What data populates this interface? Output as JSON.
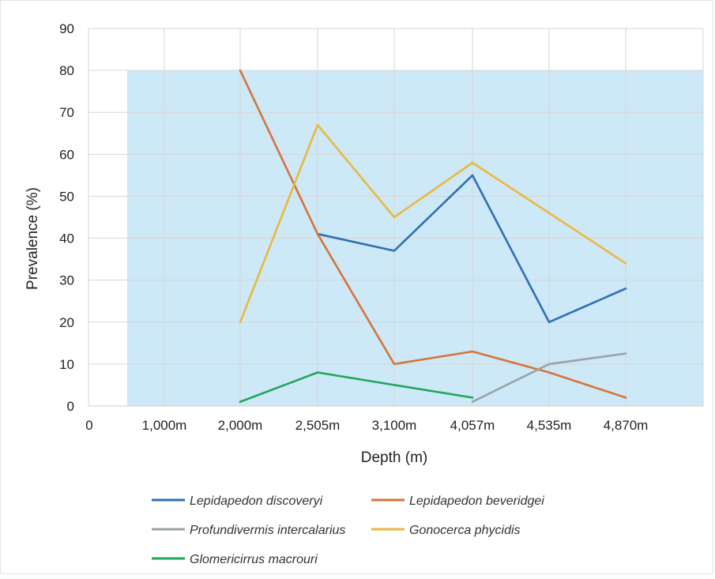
{
  "chart_data": {
    "type": "line",
    "title": "",
    "xlabel": "Depth (m)",
    "ylabel": "Prevalence (%)",
    "x_origin_label": "0",
    "categories": [
      "1,000m",
      "2,000m",
      "2,505m",
      "3,100m",
      "4,057m",
      "4,535m",
      "4,870m"
    ],
    "ylim": [
      0,
      90
    ],
    "yticks": [
      "0",
      "10",
      "20",
      "30",
      "40",
      "50",
      "60",
      "70",
      "80",
      "90"
    ],
    "shaded_band": {
      "y_from": 0,
      "y_to": 80,
      "color": "#cde8f7"
    },
    "grid": true,
    "legend_position": "bottom",
    "series": [
      {
        "name": "Lepidapedon discoveryi",
        "color": "#2e6fb5",
        "values": [
          null,
          null,
          41,
          37,
          55,
          20,
          28
        ]
      },
      {
        "name": "Lepidapedon beveridgei",
        "color": "#d4753a",
        "values": [
          null,
          80,
          41,
          10,
          13,
          8,
          2
        ]
      },
      {
        "name": "Profundivermis intercalarius",
        "color": "#9aa3a8",
        "values": [
          null,
          null,
          null,
          null,
          1,
          10,
          12.5
        ]
      },
      {
        "name": "Gonocerca phycidis",
        "color": "#e8b93f",
        "values": [
          null,
          20,
          67,
          45,
          58,
          46,
          34
        ]
      },
      {
        "name": "Glomericirrus macrouri",
        "color": "#1fa65a",
        "values": [
          null,
          1,
          8,
          5,
          2,
          null,
          null
        ]
      }
    ]
  }
}
